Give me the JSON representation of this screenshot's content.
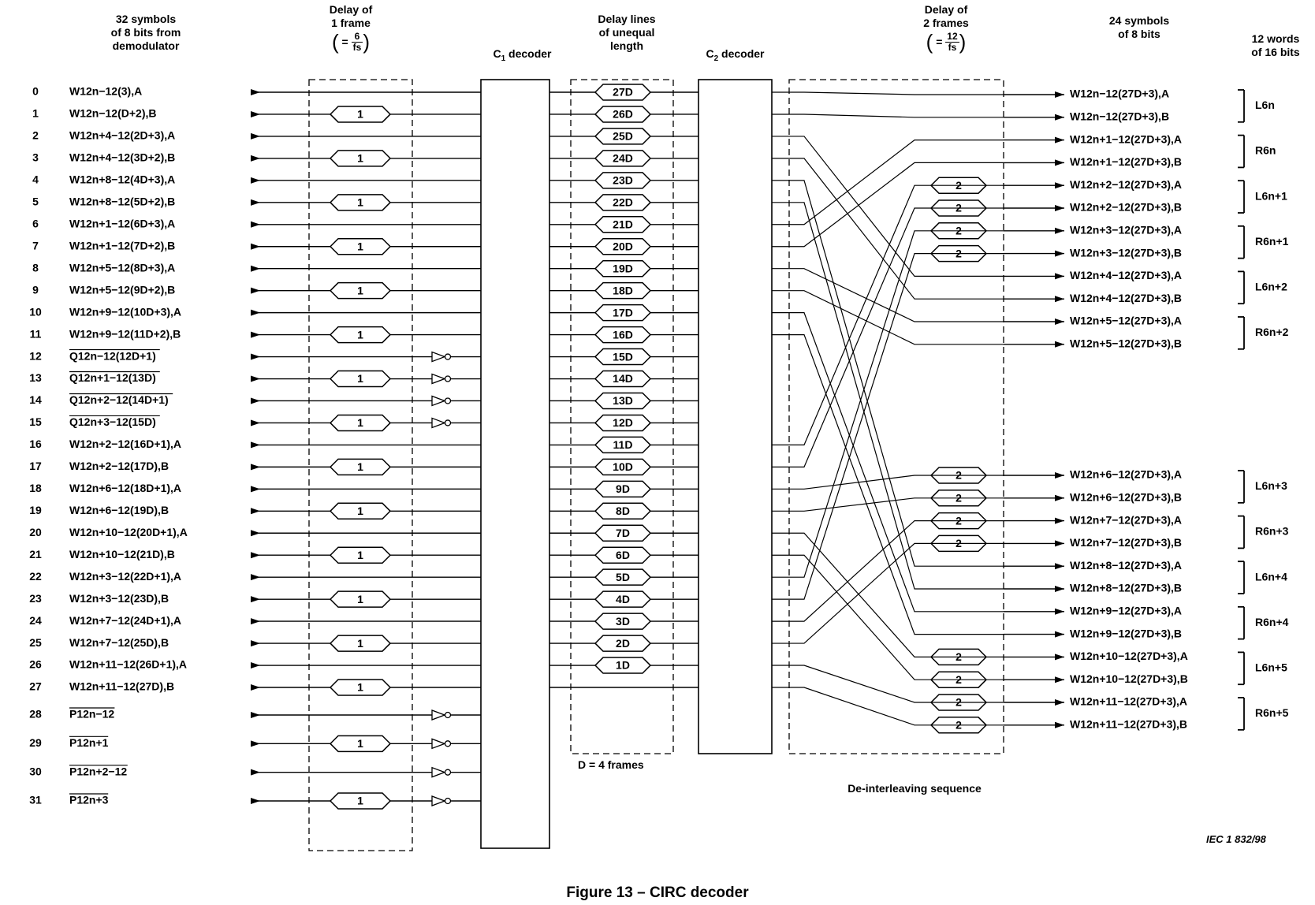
{
  "headers": {
    "input": [
      "32 symbols",
      "of 8 bits from",
      "demodulator"
    ],
    "delay1": [
      "Delay of",
      "1 frame"
    ],
    "delay1_num": "6",
    "delay1_den": "fs",
    "c1": "C",
    "c1_sub": "1",
    "c1_rest": " decoder",
    "lines": [
      "Delay lines",
      "of unequal",
      "length"
    ],
    "c2": "C",
    "c2_sub": "2",
    "c2_rest": " decoder",
    "delay2": [
      "Delay of",
      "2 frames"
    ],
    "delay2_num": "12",
    "delay2_den": "fs",
    "output": [
      "24 symbols",
      "of 8 bits"
    ],
    "words": [
      "12 words",
      "of 16 bits"
    ]
  },
  "inputs": [
    {
      "n": "0",
      "label": "W12n−12(3),A"
    },
    {
      "n": "1",
      "label": "W12n−12(D+2),B"
    },
    {
      "n": "2",
      "label": "W12n+4−12(2D+3),A"
    },
    {
      "n": "3",
      "label": "W12n+4−12(3D+2),B"
    },
    {
      "n": "4",
      "label": "W12n+8−12(4D+3),A"
    },
    {
      "n": "5",
      "label": "W12n+8−12(5D+2),B"
    },
    {
      "n": "6",
      "label": "W12n+1−12(6D+3),A"
    },
    {
      "n": "7",
      "label": "W12n+1−12(7D+2),B"
    },
    {
      "n": "8",
      "label": "W12n+5−12(8D+3),A"
    },
    {
      "n": "9",
      "label": "W12n+5−12(9D+2),B"
    },
    {
      "n": "10",
      "label": "W12n+9−12(10D+3),A"
    },
    {
      "n": "11",
      "label": "W12n+9−12(11D+2),B"
    },
    {
      "n": "12",
      "label": "Q12n−12(12D+1)"
    },
    {
      "n": "13",
      "label": "Q12n+1−12(13D)"
    },
    {
      "n": "14",
      "label": "Q12n+2−12(14D+1)"
    },
    {
      "n": "15",
      "label": "Q12n+3−12(15D)"
    },
    {
      "n": "16",
      "label": "W12n+2−12(16D+1),A"
    },
    {
      "n": "17",
      "label": "W12n+2−12(17D),B"
    },
    {
      "n": "18",
      "label": "W12n+6−12(18D+1),A"
    },
    {
      "n": "19",
      "label": "W12n+6−12(19D),B"
    },
    {
      "n": "20",
      "label": "W12n+10−12(20D+1),A"
    },
    {
      "n": "21",
      "label": "W12n+10−12(21D),B"
    },
    {
      "n": "22",
      "label": "W12n+3−12(22D+1),A"
    },
    {
      "n": "23",
      "label": "W12n+3−12(23D),B"
    },
    {
      "n": "24",
      "label": "W12n+7−12(24D+1),A"
    },
    {
      "n": "25",
      "label": "W12n+7−12(25D),B"
    },
    {
      "n": "26",
      "label": "W12n+11−12(26D+1),A"
    },
    {
      "n": "27",
      "label": "W12n+11−12(27D),B"
    },
    {
      "n": "28",
      "label": "P12n−12"
    },
    {
      "n": "29",
      "label": "P12n+1"
    },
    {
      "n": "30",
      "label": "P12n+2−12"
    },
    {
      "n": "31",
      "label": "P12n+3"
    }
  ],
  "delay1_box": "1",
  "delay_lines": [
    "27D",
    "26D",
    "25D",
    "24D",
    "23D",
    "22D",
    "21D",
    "20D",
    "19D",
    "18D",
    "17D",
    "16D",
    "15D",
    "14D",
    "13D",
    "12D",
    "11D",
    "10D",
    "9D",
    "8D",
    "7D",
    "6D",
    "5D",
    "4D",
    "3D",
    "2D",
    "1D"
  ],
  "delay2_box": "2",
  "outputs": [
    "W12n−12(27D+3),A",
    "W12n−12(27D+3),B",
    "W12n+1−12(27D+3),A",
    "W12n+1−12(27D+3),B",
    "W12n+2−12(27D+3),A",
    "W12n+2−12(27D+3),B",
    "W12n+3−12(27D+3),A",
    "W12n+3−12(27D+3),B",
    "W12n+4−12(27D+3),A",
    "W12n+4−12(27D+3),B",
    "W12n+5−12(27D+3),A",
    "W12n+5−12(27D+3),B",
    "W12n+6−12(27D+3),A",
    "W12n+6−12(27D+3),B",
    "W12n+7−12(27D+3),A",
    "W12n+7−12(27D+3),B",
    "W12n+8−12(27D+3),A",
    "W12n+8−12(27D+3),B",
    "W12n+9−12(27D+3),A",
    "W12n+9−12(27D+3),B",
    "W12n+10−12(27D+3),A",
    "W12n+10−12(27D+3),B",
    "W12n+11−12(27D+3),A",
    "W12n+11−12(27D+3),B"
  ],
  "words": [
    "L6n",
    "R6n",
    "L6n+1",
    "R6n+1",
    "L6n+2",
    "R6n+2",
    "L6n+3",
    "R6n+3",
    "L6n+4",
    "R6n+4",
    "L6n+5",
    "R6n+5"
  ],
  "d_note": "D = 4 frames",
  "deinterleave": "De-interleaving sequence",
  "iec": "IEC   1 832/98",
  "caption": "Figure 13 – CIRC decoder"
}
